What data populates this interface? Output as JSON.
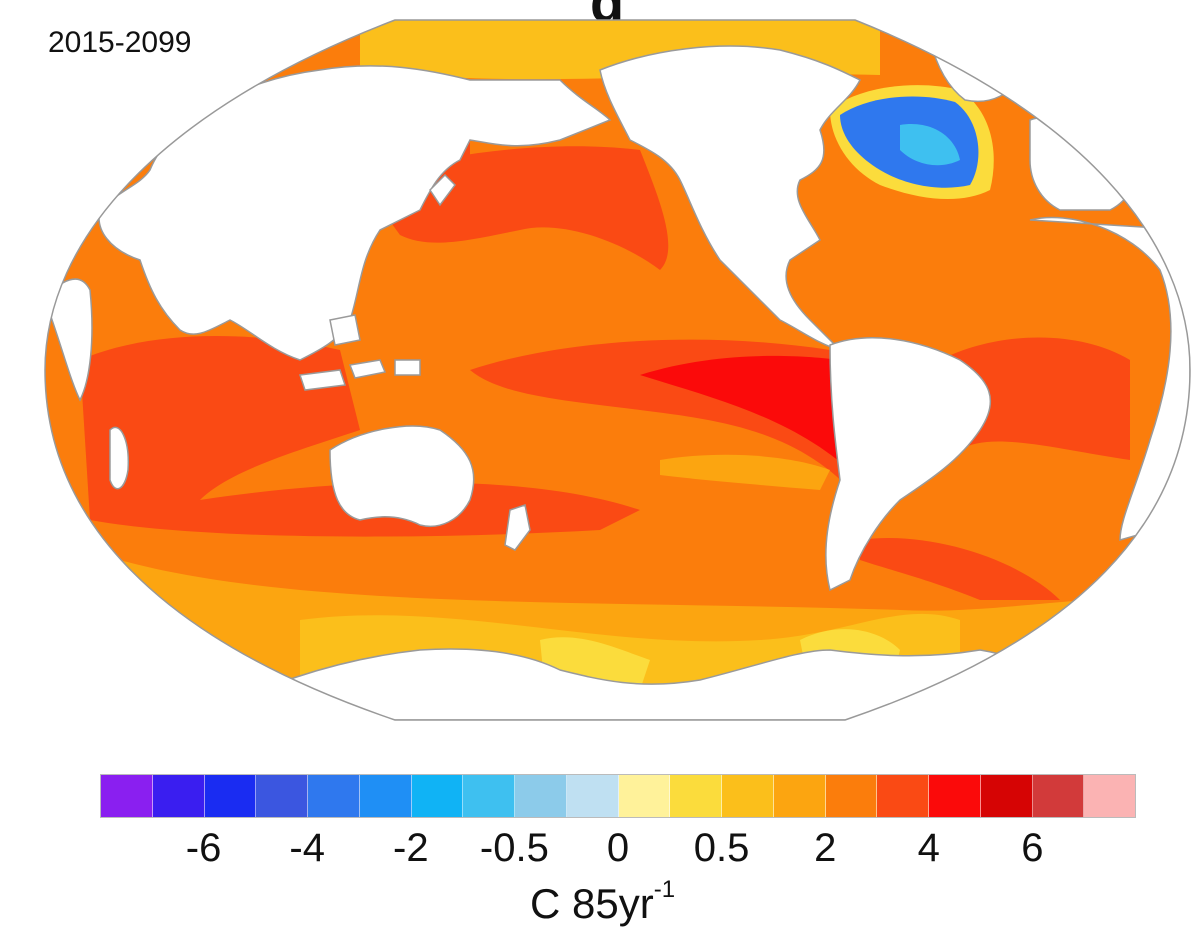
{
  "title_fragment": "g",
  "period": "2015-2099",
  "colorbar": {
    "colors": [
      "#8a1ff0",
      "#3a1ef0",
      "#1a2cf2",
      "#3b56e0",
      "#2f78ee",
      "#1f8ff5",
      "#10b3f5",
      "#3ec0f0",
      "#8ccbea",
      "#bfe0f2",
      "#fff29a",
      "#fbdc3c",
      "#fbbf1b",
      "#fca510",
      "#fb7d0c",
      "#fa4a14",
      "#fb0a0a",
      "#d60404",
      "#d23a3a",
      "#fbb3b3"
    ],
    "tick_labels": [
      "-6",
      "-4",
      "-2",
      "-0.5",
      "0",
      "0.5",
      "2",
      "4",
      "6"
    ],
    "units_main": "C 85yr",
    "units_sup": "-1"
  },
  "map": {
    "projection": "Robinson-like, Pacific-centred",
    "land_color": "#ffffff",
    "coast_color": "#999999",
    "ocean_base_color": "#fb7d0c",
    "features": [
      "warming everywhere except subpolar North Atlantic cooling patch"
    ]
  }
}
